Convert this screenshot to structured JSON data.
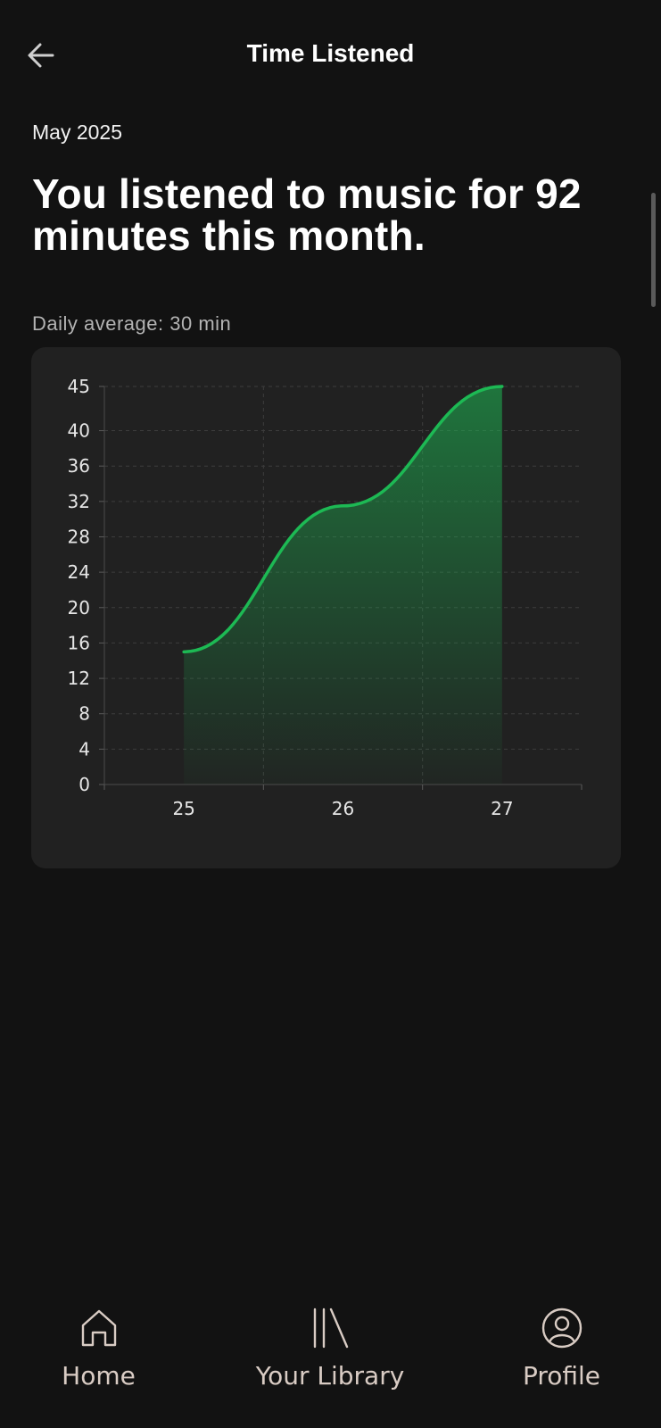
{
  "header": {
    "title": "Time Listened",
    "back_icon": "arrow-left-icon"
  },
  "period": "May 2025",
  "summary": {
    "headline": "You listened to music for 92 minutes this month.",
    "daily_average": "Daily average: 30 min"
  },
  "chart_data": {
    "type": "area",
    "x": [
      "25",
      "26",
      "27"
    ],
    "values": [
      15,
      31.5,
      45
    ],
    "title": "",
    "xlabel": "",
    "ylabel": "",
    "yticks": [
      0,
      4,
      8,
      12,
      16,
      20,
      24,
      28,
      32,
      36,
      40,
      45
    ],
    "ylim": [
      0,
      45
    ],
    "grid": true,
    "line_color": "#1db954",
    "fill_color": "#1db954"
  },
  "nav": {
    "items": [
      {
        "label": "Home",
        "icon": "home-icon"
      },
      {
        "label": "Your Library",
        "icon": "library-icon"
      },
      {
        "label": "Profile",
        "icon": "profile-icon"
      }
    ]
  },
  "colors": {
    "background": "#121212",
    "card": "#212121",
    "accent": "#1db954",
    "nav_text": "#d9ccc4"
  }
}
